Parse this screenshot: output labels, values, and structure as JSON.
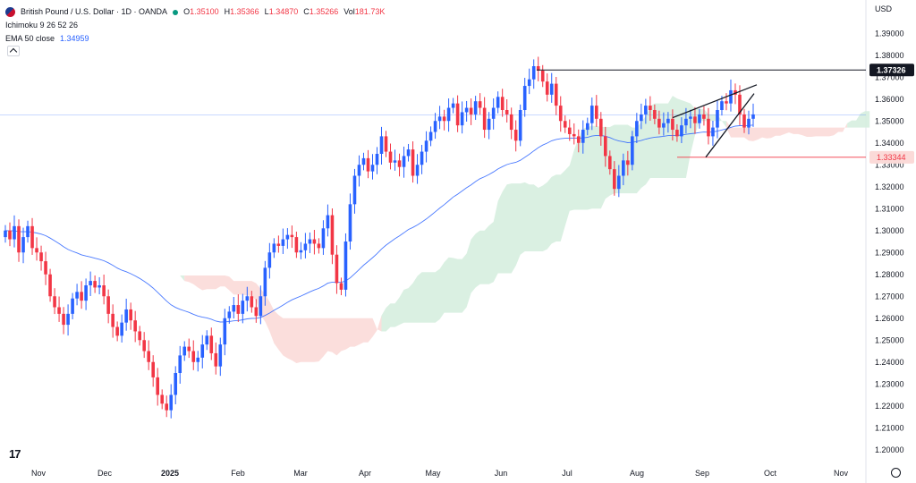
{
  "legend": {
    "symbol": "British Pound / U.S. Dollar · 1D · OANDA",
    "open_label": "O",
    "open_value": "1.35100",
    "high_label": "H",
    "high_value": "1.35366",
    "low_label": "L",
    "low_value": "1.34870",
    "close_label": "C",
    "close_value": "1.35266",
    "vol_label": "Vol",
    "vol_value": "181.73K",
    "ichimoku": "Ichimoku 9 26 52 26",
    "ema_label": "EMA 50 close",
    "ema_value": "1.34959"
  },
  "colors": {
    "up": "#2962ff",
    "down": "#f23645",
    "ema": "#2962ff",
    "cloud_bull": "#d6eedf",
    "cloud_bear": "#fbdad8"
  },
  "chart_data": {
    "type": "candlestick",
    "currency": "USD",
    "ylim": [
      1.195,
      1.395
    ],
    "y_ticks": [
      "1.39000",
      "1.38000",
      "1.37000",
      "1.36000",
      "1.35000",
      "1.34000",
      "1.33000",
      "1.32000",
      "1.31000",
      "1.30000",
      "1.29000",
      "1.28000",
      "1.27000",
      "1.26000",
      "1.25000",
      "1.24000",
      "1.23000",
      "1.22000",
      "1.21000",
      "1.20000"
    ],
    "x_ticks": [
      "Nov",
      "Dec",
      "2025",
      "Feb",
      "Mar",
      "Apr",
      "May",
      "Jun",
      "Jul",
      "Aug",
      "Sep",
      "Oct",
      "Nov"
    ],
    "price_labels": [
      {
        "label": "1.37326",
        "value": 1.37326
      },
      {
        "label": "1.33344",
        "value": 1.33344
      }
    ],
    "current_price": 1.35266,
    "resistance": 1.37326,
    "support": 1.33344,
    "close_path": [
      1.3,
      1.296,
      1.302,
      1.29,
      1.297,
      1.302,
      1.292,
      1.29,
      1.286,
      1.28,
      1.27,
      1.265,
      1.262,
      1.257,
      1.262,
      1.269,
      1.272,
      1.268,
      1.275,
      1.277,
      1.274,
      1.275,
      1.27,
      1.262,
      1.256,
      1.252,
      1.258,
      1.264,
      1.259,
      1.254,
      1.25,
      1.245,
      1.24,
      1.233,
      1.225,
      1.221,
      1.218,
      1.225,
      1.235,
      1.243,
      1.247,
      1.245,
      1.24,
      1.242,
      1.248,
      1.252,
      1.244,
      1.238,
      1.248,
      1.26,
      1.263,
      1.266,
      1.262,
      1.268,
      1.27,
      1.265,
      1.261,
      1.27,
      1.283,
      1.29,
      1.294,
      1.293,
      1.296,
      1.298,
      1.297,
      1.29,
      1.291,
      1.294,
      1.296,
      1.294,
      1.292,
      1.301,
      1.307,
      1.289,
      1.276,
      1.273,
      1.295,
      1.312,
      1.325,
      1.33,
      1.333,
      1.327,
      1.33,
      1.335,
      1.343,
      1.336,
      1.331,
      1.332,
      1.329,
      1.334,
      1.337,
      1.325,
      1.33,
      1.336,
      1.341,
      1.345,
      1.35,
      1.352,
      1.35,
      1.356,
      1.358,
      1.348,
      1.354,
      1.356,
      1.353,
      1.359,
      1.356,
      1.346,
      1.351,
      1.356,
      1.361,
      1.355,
      1.353,
      1.346,
      1.341,
      1.355,
      1.366,
      1.369,
      1.375,
      1.373,
      1.368,
      1.362,
      1.367,
      1.357,
      1.35,
      1.347,
      1.344,
      1.343,
      1.34,
      1.346,
      1.349,
      1.357,
      1.351,
      1.343,
      1.334,
      1.328,
      1.319,
      1.325,
      1.332,
      1.33,
      1.343,
      1.35,
      1.353,
      1.357,
      1.355,
      1.351,
      1.347,
      1.349,
      1.351,
      1.346,
      1.343,
      1.348,
      1.351,
      1.352,
      1.349,
      1.353,
      1.351,
      1.343,
      1.347,
      1.355,
      1.359,
      1.358,
      1.364,
      1.362,
      1.353,
      1.347,
      1.351,
      1.353
    ]
  }
}
